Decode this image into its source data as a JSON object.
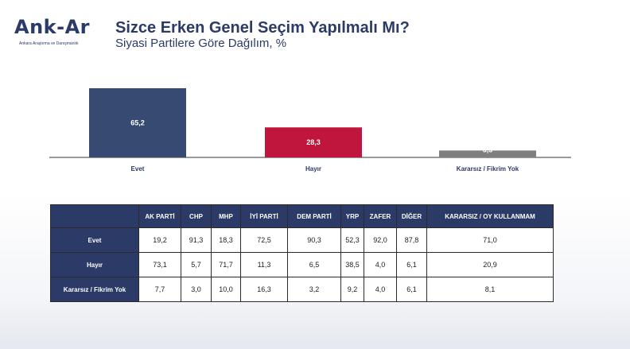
{
  "logo": {
    "name": "Ank-Ar",
    "tagline": "Ankara Araştırma ve Danışmanlık"
  },
  "header": {
    "title": "Sizce Erken Genel Seçim Yapılmalı Mı?",
    "subtitle": "Siyasi Partilere Göre Dağılım, %"
  },
  "colors": {
    "navy": "#364a72",
    "crimson": "#c0153d",
    "gray": "#7f7f7f"
  },
  "chart_data": {
    "type": "bar",
    "categories": [
      "Evet",
      "Hayır",
      "Kararsız / Fikrim Yok"
    ],
    "values": [
      65.2,
      28.3,
      6.5
    ],
    "value_labels": [
      "65,2",
      "28,3",
      "6,5"
    ],
    "colors": [
      "#364a72",
      "#c0153d",
      "#7f7f7f"
    ],
    "ylim": [
      0,
      65.2
    ],
    "grid": false
  },
  "table": {
    "columns": [
      "AK PARTİ",
      "CHP",
      "MHP",
      "İYİ PARTİ",
      "DEM PARTİ",
      "YRP",
      "ZAFER",
      "DİĞER",
      "KARARSIZ / OY KULLANMAM"
    ],
    "rows": [
      {
        "label": "Evet",
        "values": [
          "19,2",
          "91,3",
          "18,3",
          "72,5",
          "90,3",
          "52,3",
          "92,0",
          "87,8",
          "71,0"
        ]
      },
      {
        "label": "Hayır",
        "values": [
          "73,1",
          "5,7",
          "71,7",
          "11,3",
          "6,5",
          "38,5",
          "4,0",
          "6,1",
          "20,9"
        ]
      },
      {
        "label": "Kararsız / Fikrim Yok",
        "values": [
          "7,7",
          "3,0",
          "10,0",
          "16,3",
          "3,2",
          "9,2",
          "4,0",
          "6,1",
          "8,1"
        ]
      }
    ]
  }
}
